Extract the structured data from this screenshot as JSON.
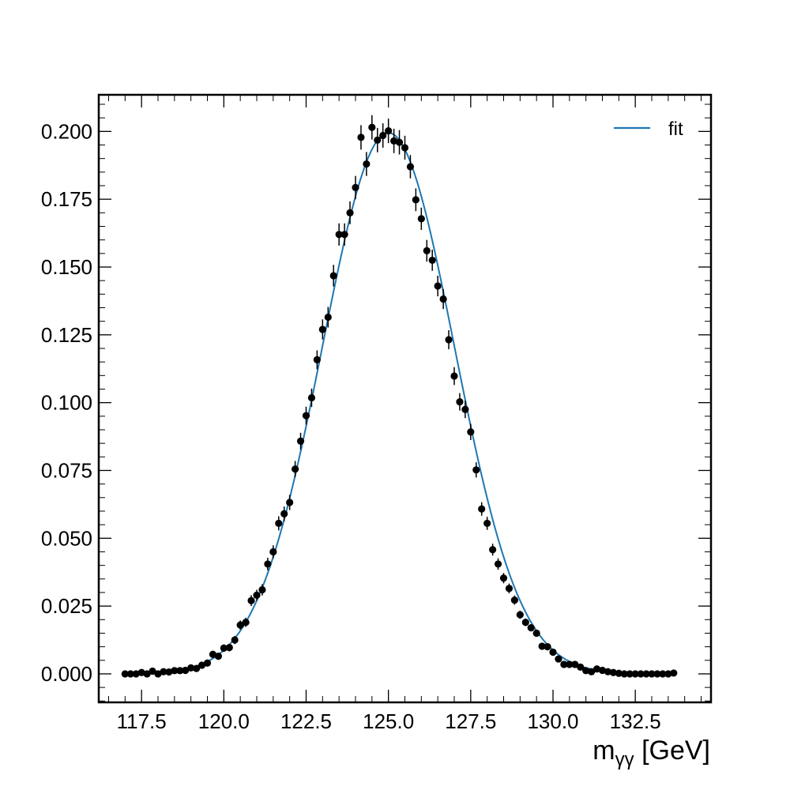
{
  "chart_data": {
    "type": "scatter",
    "xlabel_main": "m",
    "xlabel_sub": "γγ",
    "xlabel_unit": " [GeV]",
    "ylabel": "",
    "xlim": [
      116.2,
      134.8
    ],
    "ylim": [
      -0.0105,
      0.2135
    ],
    "x_ticks": [
      117.5,
      120.0,
      122.5,
      125.0,
      127.5,
      130.0,
      132.5
    ],
    "x_tick_labels": [
      "117.5",
      "120.0",
      "122.5",
      "125.0",
      "127.5",
      "130.0",
      "132.5"
    ],
    "y_ticks": [
      0.0,
      0.025,
      0.05,
      0.075,
      0.1,
      0.125,
      0.15,
      0.175,
      0.2
    ],
    "y_tick_labels": [
      "0.000",
      "0.025",
      "0.050",
      "0.075",
      "0.100",
      "0.125",
      "0.150",
      "0.175",
      "0.200"
    ],
    "grid": false,
    "legend_position": "top-right",
    "series": [
      {
        "name": "fit",
        "kind": "line",
        "color": "#1f77b4",
        "model": "gaussian",
        "amplitude": 0.1995,
        "mean": 125.0,
        "sigma": 2.0
      },
      {
        "kind": "errorbar-points",
        "color": "#000000",
        "x": [
          117.0,
          117.167,
          117.333,
          117.5,
          117.667,
          117.833,
          118.0,
          118.167,
          118.333,
          118.5,
          118.667,
          118.833,
          119.0,
          119.167,
          119.333,
          119.5,
          119.667,
          119.833,
          120.0,
          120.167,
          120.333,
          120.5,
          120.667,
          120.833,
          121.0,
          121.167,
          121.333,
          121.5,
          121.667,
          121.833,
          122.0,
          122.167,
          122.333,
          122.5,
          122.667,
          122.833,
          123.0,
          123.167,
          123.333,
          123.5,
          123.667,
          123.833,
          124.0,
          124.167,
          124.333,
          124.5,
          124.667,
          124.833,
          125.0,
          125.167,
          125.333,
          125.5,
          125.667,
          125.833,
          126.0,
          126.167,
          126.333,
          126.5,
          126.667,
          126.833,
          127.0,
          127.167,
          127.333,
          127.5,
          127.667,
          127.833,
          128.0,
          128.167,
          128.333,
          128.5,
          128.667,
          128.833,
          129.0,
          129.167,
          129.333,
          129.5,
          129.667,
          129.833,
          130.0,
          130.167,
          130.333,
          130.5,
          130.667,
          130.833,
          131.0,
          131.167,
          131.333,
          131.5,
          131.667,
          131.833,
          132.0,
          132.167,
          132.333,
          132.5,
          132.667,
          132.833,
          133.0,
          133.167,
          133.333,
          133.5,
          133.667
        ],
        "y": [
          0.0,
          0.0,
          0.0,
          0.0005,
          0.0,
          0.001,
          0.0,
          0.0008,
          0.0007,
          0.0012,
          0.0012,
          0.0013,
          0.0022,
          0.002,
          0.0032,
          0.004,
          0.0072,
          0.0065,
          0.0095,
          0.0097,
          0.0125,
          0.018,
          0.019,
          0.027,
          0.029,
          0.031,
          0.0405,
          0.045,
          0.0555,
          0.059,
          0.0632,
          0.0755,
          0.0858,
          0.0952,
          0.1018,
          0.1158,
          0.127,
          0.1315,
          0.1468,
          0.162,
          0.162,
          0.17,
          0.1793,
          0.1978,
          0.188,
          0.2015,
          0.1968,
          0.1985,
          0.2002,
          0.1965,
          0.196,
          0.194,
          0.187,
          0.1748,
          0.1678,
          0.156,
          0.1525,
          0.143,
          0.1382,
          0.1232,
          0.1098,
          0.1003,
          0.0975,
          0.0892,
          0.0752,
          0.0608,
          0.0555,
          0.0458,
          0.0405,
          0.0353,
          0.0315,
          0.0272,
          0.0218,
          0.019,
          0.017,
          0.015,
          0.0102,
          0.01,
          0.008,
          0.0055,
          0.0035,
          0.0035,
          0.0035,
          0.0025,
          0.0012,
          0.0008,
          0.0018,
          0.0013,
          0.0008,
          0.0005,
          0.0002,
          0.0,
          0.0,
          0.0,
          0.0,
          0.0,
          0.0,
          0.0,
          0.0,
          0.0,
          0.0003
        ],
        "yerr": [
          0.0008,
          0.0008,
          0.0008,
          0.0008,
          0.0008,
          0.0008,
          0.0008,
          0.0008,
          0.0008,
          0.0009,
          0.0009,
          0.0009,
          0.001,
          0.001,
          0.0011,
          0.0011,
          0.0013,
          0.0012,
          0.0014,
          0.0014,
          0.0015,
          0.0017,
          0.0017,
          0.002,
          0.002,
          0.0021,
          0.0023,
          0.0024,
          0.0026,
          0.0027,
          0.0028,
          0.003,
          0.0031,
          0.0033,
          0.0034,
          0.0035,
          0.0037,
          0.0038,
          0.004,
          0.0041,
          0.0041,
          0.0042,
          0.0043,
          0.0045,
          0.0044,
          0.0045,
          0.0045,
          0.0045,
          0.0045,
          0.0045,
          0.0045,
          0.0044,
          0.0043,
          0.0042,
          0.0041,
          0.004,
          0.0039,
          0.0038,
          0.0037,
          0.0035,
          0.0033,
          0.0032,
          0.0032,
          0.003,
          0.0028,
          0.0025,
          0.0024,
          0.0022,
          0.0021,
          0.0019,
          0.0018,
          0.0017,
          0.0015,
          0.0014,
          0.0013,
          0.0013,
          0.001,
          0.001,
          0.0009,
          0.0008,
          0.0008,
          0.0008,
          0.0008,
          0.0008,
          0.0008,
          0.0008,
          0.0008,
          0.0008,
          0.0008,
          0.0008,
          0.0008,
          0.0008,
          0.0008,
          0.0008,
          0.0008,
          0.0008,
          0.0008,
          0.0008,
          0.0008,
          0.0008,
          0.0008
        ]
      }
    ]
  }
}
